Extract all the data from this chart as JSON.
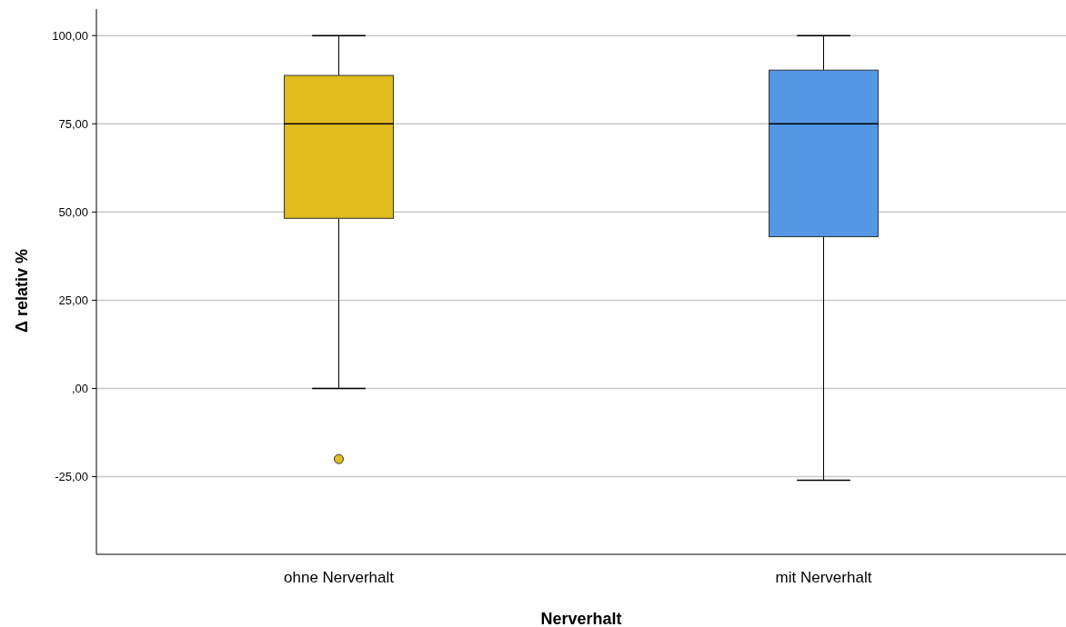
{
  "chart_data": {
    "type": "box",
    "xlabel": "Nerverhalt",
    "ylabel": "Δ relativ %",
    "categories": [
      "ohne Nerverhalt",
      "mit Nerverhalt"
    ],
    "colors": [
      "#e1bc1f",
      "#5497e5"
    ],
    "boxes": [
      {
        "low": 0,
        "q1": 48.2,
        "median": 75,
        "q3": 88.7,
        "high": 100,
        "outliers": [
          -20
        ]
      },
      {
        "low": -26,
        "q1": 43,
        "median": 75,
        "q3": 90.2,
        "high": 100
      }
    ],
    "ylim": [
      -47,
      107.5
    ],
    "yticks": [
      {
        "value": -25,
        "label": "-25,00"
      },
      {
        "value": 0,
        "label": ",00"
      },
      {
        "value": 25,
        "label": "25,00"
      },
      {
        "value": 50,
        "label": "50,00"
      },
      {
        "value": 75,
        "label": "75,00"
      },
      {
        "value": 100,
        "label": "100,00"
      }
    ],
    "grid": "y"
  }
}
